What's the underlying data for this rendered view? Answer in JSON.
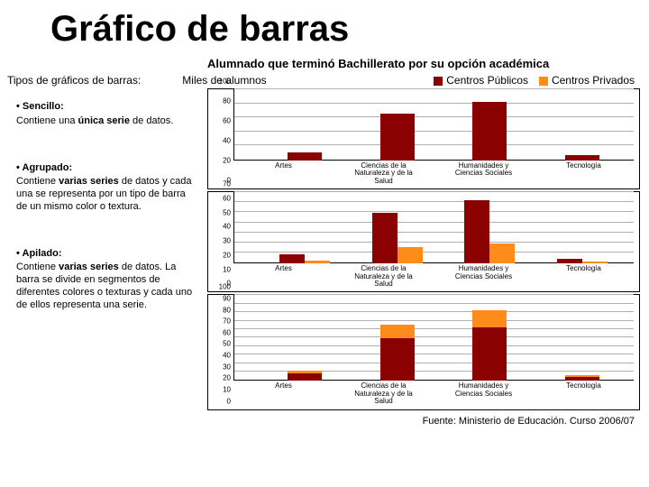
{
  "title": "Gráfico de barras",
  "subtitle": "Alumnado que terminó Bachillerato por su opción académica",
  "topline_left": "Tipos de gráficos de barras:",
  "miles": "Miles de alumnos",
  "legend": {
    "pub_label": "Centros Públicos",
    "pub_color": "#8B0000",
    "pri_label": "Centros Privados",
    "pri_color": "#FF8C1A"
  },
  "left": {
    "h1": "• Sencillo:",
    "p1a": "Contiene una ",
    "p1b": "única serie",
    "p1c": " de datos.",
    "h2": "• Agrupado:",
    "p2a": "Contiene ",
    "p2b": "varias series ",
    "p2c": "de datos y cada una se representa por un tipo de barra de un mismo color o textura.",
    "h3": "• Apilado:",
    "p3a": "Contiene ",
    "p3b": "varias series",
    "p3c": " de datos. La barra se divide en segmentos de diferentes colores o texturas y cada uno de ellos representa una serie."
  },
  "categories": [
    "Artes",
    "Ciencias de la Naturaleza y de la Salud",
    "Humanidades y Ciencias Sociales",
    "Tecnología"
  ],
  "colors": {
    "pub": "#8B0000",
    "pri": "#FF8C1A",
    "grid": "#b0b0b0",
    "bg": "#ffffff"
  },
  "chart1": {
    "type": "bar",
    "ymax": 100,
    "ytick_step": 20,
    "values": [
      12,
      66,
      82,
      7
    ]
  },
  "chart2": {
    "type": "grouped-bar",
    "ymax": 70,
    "ytick_step": 10,
    "pub": [
      9,
      50,
      62,
      5
    ],
    "pri": [
      3,
      16,
      20,
      2
    ]
  },
  "chart3": {
    "type": "stacked-bar",
    "ymax": 100,
    "ytick_step": 10,
    "pub": [
      9,
      50,
      62,
      5
    ],
    "pri": [
      3,
      16,
      20,
      2
    ]
  },
  "source": "Fuente: Ministerio de Educación. Curso 2006/07"
}
